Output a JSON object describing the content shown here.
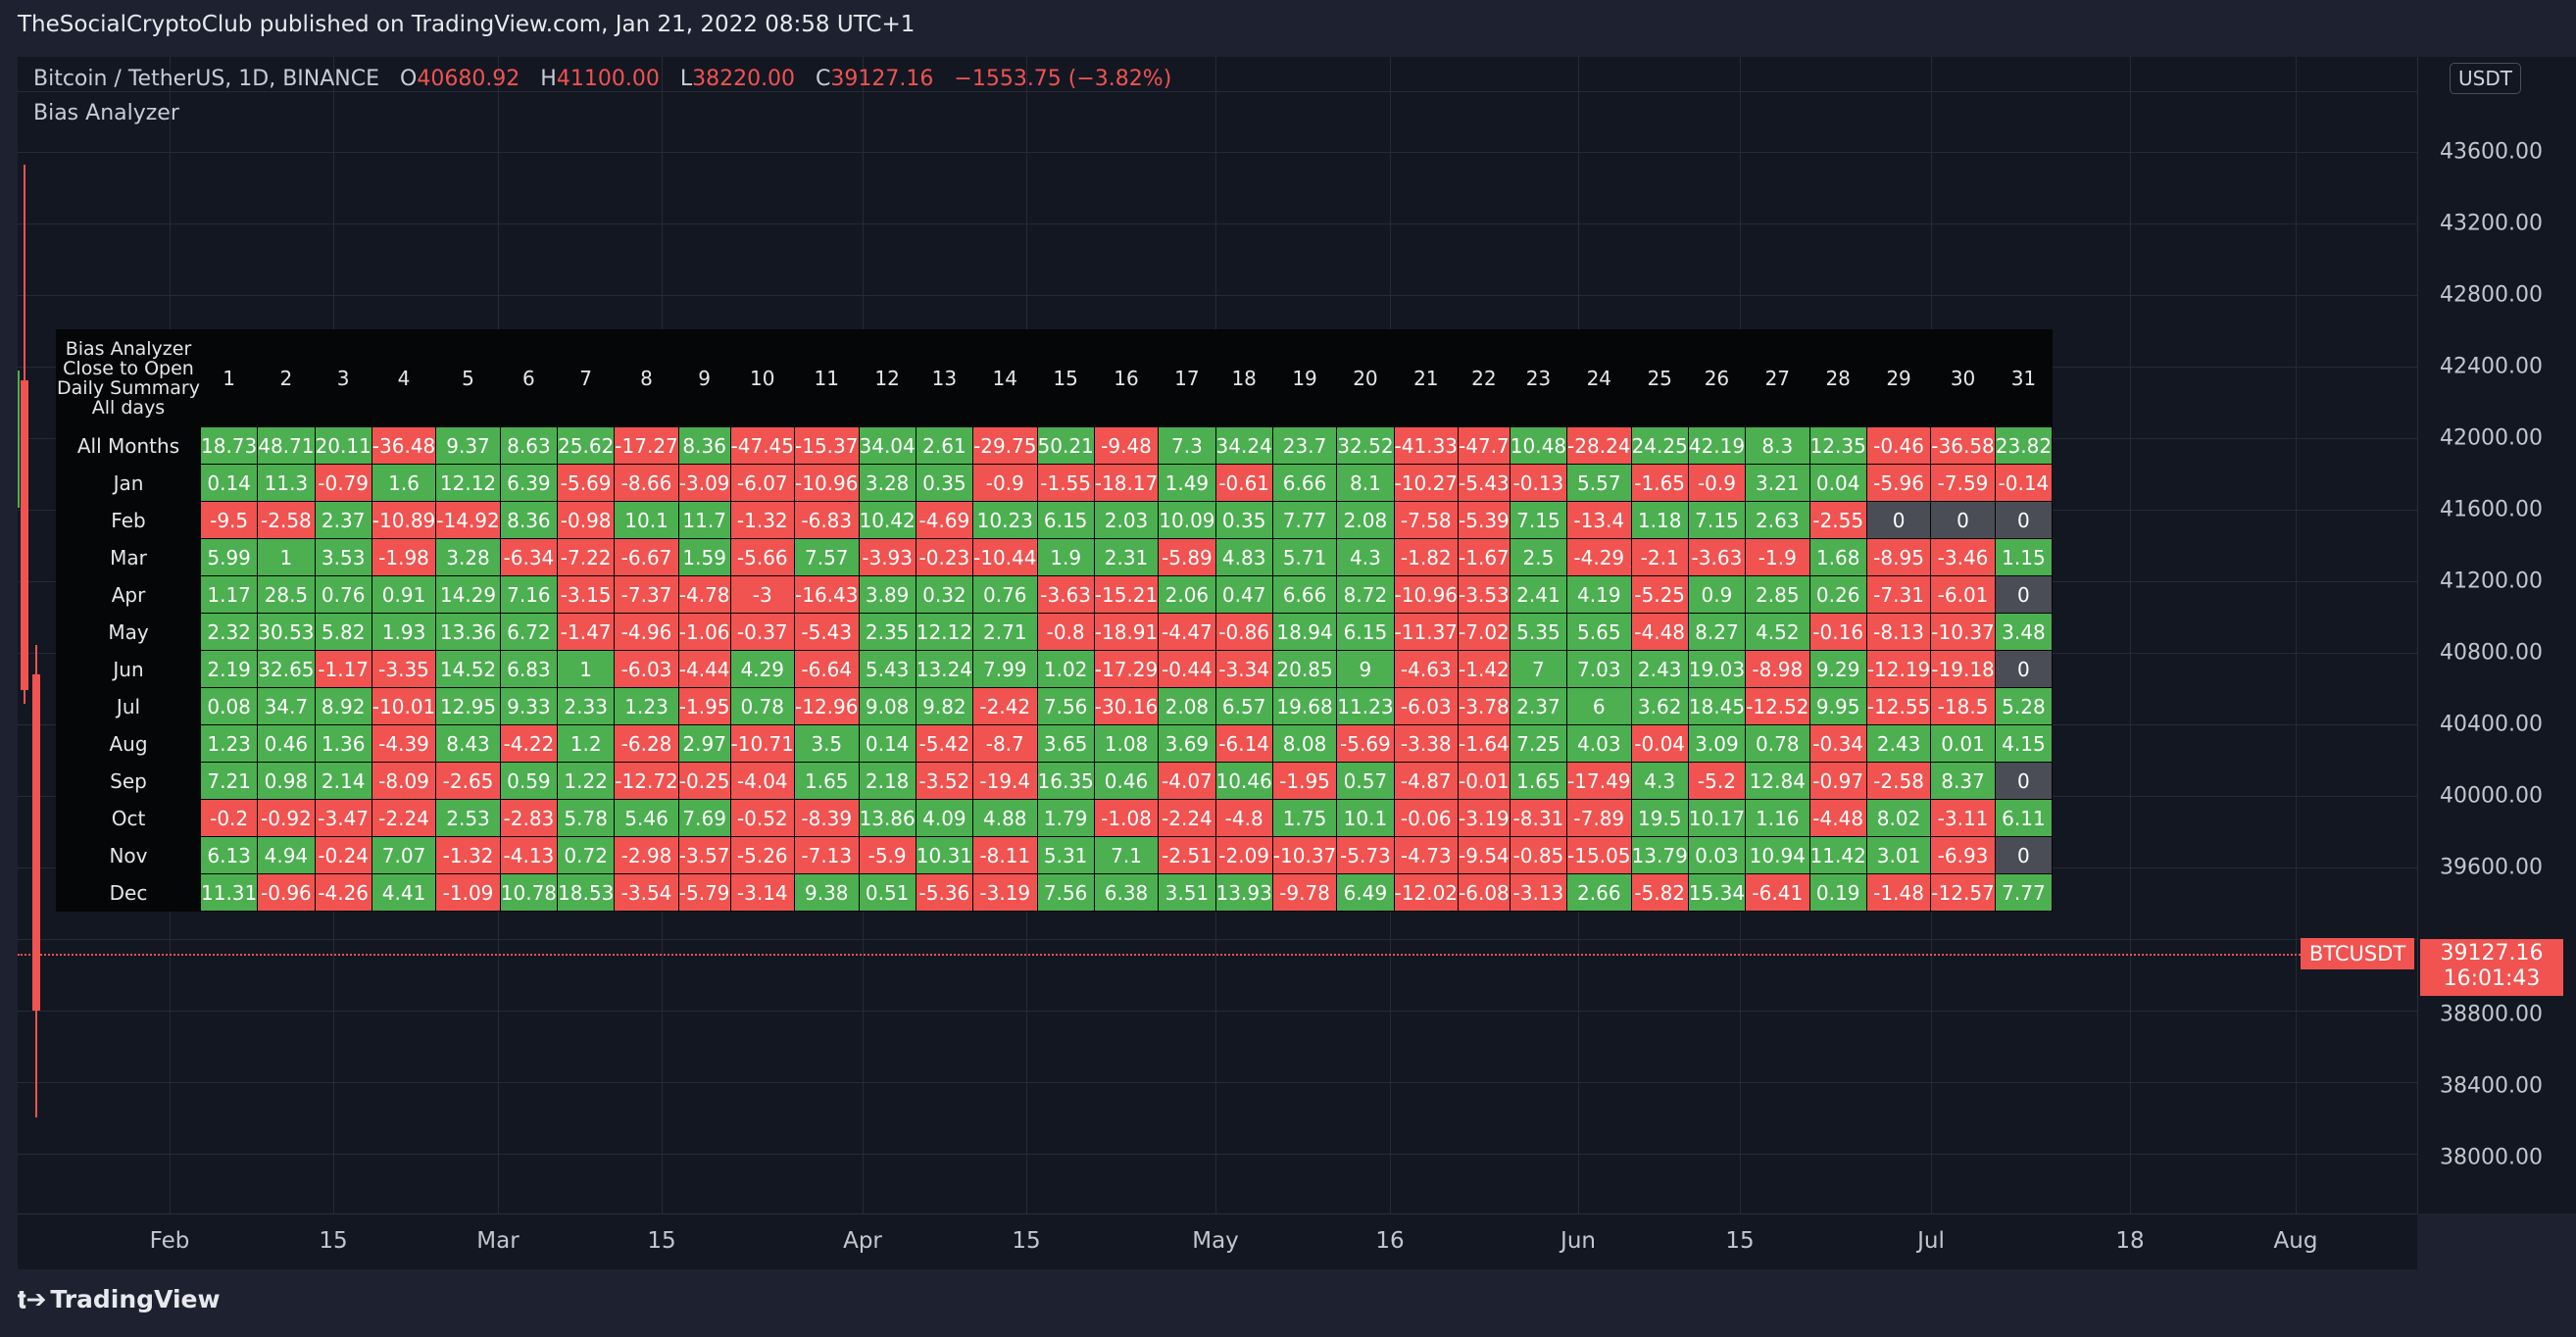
{
  "header": {
    "text": "TheSocialCryptoClub published on TradingView.com, Jan 21, 2022 08:58 UTC+1"
  },
  "legend": {
    "symbol": "Bitcoin / TetherUS, 1D, BINANCE",
    "open_label": "O",
    "open": "40680.92",
    "high_label": "H",
    "high": "41100.00",
    "low_label": "L",
    "low": "38220.00",
    "close_label": "C",
    "close": "39127.16",
    "change": "−1553.75 (−3.82%)",
    "indicator": "Bias Analyzer"
  },
  "price_axis": {
    "currency": "USDT",
    "ticks": [
      "43600.00",
      "43200.00",
      "42800.00",
      "42400.00",
      "42000.00",
      "41600.00",
      "41200.00",
      "40800.00",
      "40400.00",
      "40000.00",
      "39600.00",
      "38800.00",
      "38400.00",
      "38000.00"
    ],
    "current_price": "39127.16",
    "countdown": "16:01:43",
    "symbol_tag": "BTCUSDT"
  },
  "time_axis": {
    "labels": [
      "Feb",
      "15",
      "Mar",
      "15",
      "Apr",
      "15",
      "May",
      "16",
      "Jun",
      "15",
      "Jul",
      "18",
      "Aug"
    ]
  },
  "footer": {
    "brand": "TradingView"
  },
  "colors": {
    "positive": "#4caf50",
    "negative": "#f05350",
    "zero": "#4a4d55",
    "background": "#131722"
  },
  "table": {
    "corner": [
      "Bias Analyzer",
      "Close to Open",
      "Daily Summary",
      "All days"
    ],
    "days": [
      "1",
      "2",
      "3",
      "4",
      "5",
      "6",
      "7",
      "8",
      "9",
      "10",
      "11",
      "12",
      "13",
      "14",
      "15",
      "16",
      "17",
      "18",
      "19",
      "20",
      "21",
      "22",
      "23",
      "24",
      "25",
      "26",
      "27",
      "28",
      "29",
      "30",
      "31"
    ],
    "rows": [
      {
        "label": "All Months",
        "values": [
          "18.73",
          "48.71",
          "20.11",
          "-36.48",
          "9.37",
          "8.63",
          "25.62",
          "-17.27",
          "8.36",
          "-47.45",
          "-15.37",
          "34.04",
          "2.61",
          "-29.75",
          "50.21",
          "-9.48",
          "7.3",
          "34.24",
          "23.7",
          "32.52",
          "-41.33",
          "-47.7",
          "10.48",
          "-28.24",
          "24.25",
          "42.19",
          "8.3",
          "12.35",
          "-0.46",
          "-36.58",
          "23.82"
        ]
      },
      {
        "label": "Jan",
        "values": [
          "0.14",
          "11.3",
          "-0.79",
          "1.6",
          "12.12",
          "6.39",
          "-5.69",
          "-8.66",
          "-3.09",
          "-6.07",
          "-10.96",
          "3.28",
          "0.35",
          "-0.9",
          "-1.55",
          "-18.17",
          "1.49",
          "-0.61",
          "6.66",
          "8.1",
          "-10.27",
          "-5.43",
          "-0.13",
          "5.57",
          "-1.65",
          "-0.9",
          "3.21",
          "0.04",
          "-5.96",
          "-7.59",
          "-0.14"
        ]
      },
      {
        "label": "Feb",
        "values": [
          "-9.5",
          "-2.58",
          "2.37",
          "-10.89",
          "-14.92",
          "8.36",
          "-0.98",
          "10.1",
          "11.7",
          "-1.32",
          "-6.83",
          "10.42",
          "-4.69",
          "10.23",
          "6.15",
          "2.03",
          "10.09",
          "0.35",
          "7.77",
          "2.08",
          "-7.58",
          "-5.39",
          "7.15",
          "-13.4",
          "1.18",
          "7.15",
          "2.63",
          "-2.55",
          "0",
          "0",
          "0"
        ]
      },
      {
        "label": "Mar",
        "values": [
          "5.99",
          "1",
          "3.53",
          "-1.98",
          "3.28",
          "-6.34",
          "-7.22",
          "-6.67",
          "1.59",
          "-5.66",
          "7.57",
          "-3.93",
          "-0.23",
          "-10.44",
          "1.9",
          "2.31",
          "-5.89",
          "4.83",
          "5.71",
          "4.3",
          "-1.82",
          "-1.67",
          "2.5",
          "-4.29",
          "-2.1",
          "-3.63",
          "-1.9",
          "1.68",
          "-8.95",
          "-3.46",
          "1.15"
        ]
      },
      {
        "label": "Apr",
        "values": [
          "1.17",
          "28.5",
          "0.76",
          "0.91",
          "14.29",
          "7.16",
          "-3.15",
          "-7.37",
          "-4.78",
          "-3",
          "-16.43",
          "3.89",
          "0.32",
          "0.76",
          "-3.63",
          "-15.21",
          "2.06",
          "0.47",
          "6.66",
          "8.72",
          "-10.96",
          "-3.53",
          "2.41",
          "4.19",
          "-5.25",
          "0.9",
          "2.85",
          "0.26",
          "-7.31",
          "-6.01",
          "0"
        ]
      },
      {
        "label": "May",
        "values": [
          "2.32",
          "30.53",
          "5.82",
          "1.93",
          "13.36",
          "6.72",
          "-1.47",
          "-4.96",
          "-1.06",
          "-0.37",
          "-5.43",
          "2.35",
          "12.12",
          "2.71",
          "-0.8",
          "-18.91",
          "-4.47",
          "-0.86",
          "18.94",
          "6.15",
          "-11.37",
          "-7.02",
          "5.35",
          "5.65",
          "-4.48",
          "8.27",
          "4.52",
          "-0.16",
          "-8.13",
          "-10.37",
          "3.48"
        ]
      },
      {
        "label": "Jun",
        "values": [
          "2.19",
          "32.65",
          "-1.17",
          "-3.35",
          "14.52",
          "6.83",
          "1",
          "-6.03",
          "-4.44",
          "4.29",
          "-6.64",
          "5.43",
          "13.24",
          "7.99",
          "1.02",
          "-17.29",
          "-0.44",
          "-3.34",
          "20.85",
          "9",
          "-4.63",
          "-1.42",
          "7",
          "7.03",
          "2.43",
          "19.03",
          "-8.98",
          "9.29",
          "-12.19",
          "-19.18",
          "0"
        ]
      },
      {
        "label": "Jul",
        "values": [
          "0.08",
          "34.7",
          "8.92",
          "-10.01",
          "12.95",
          "9.33",
          "2.33",
          "1.23",
          "-1.95",
          "0.78",
          "-12.96",
          "9.08",
          "9.82",
          "-2.42",
          "7.56",
          "-30.16",
          "2.08",
          "6.57",
          "19.68",
          "11.23",
          "-6.03",
          "-3.78",
          "2.37",
          "6",
          "3.62",
          "18.45",
          "-12.52",
          "9.95",
          "-12.55",
          "-18.5",
          "5.28"
        ]
      },
      {
        "label": "Aug",
        "values": [
          "1.23",
          "0.46",
          "1.36",
          "-4.39",
          "8.43",
          "-4.22",
          "1.2",
          "-6.28",
          "2.97",
          "-10.71",
          "3.5",
          "0.14",
          "-5.42",
          "-8.7",
          "3.65",
          "1.08",
          "3.69",
          "-6.14",
          "8.08",
          "-5.69",
          "-3.38",
          "-1.64",
          "7.25",
          "4.03",
          "-0.04",
          "3.09",
          "0.78",
          "-0.34",
          "2.43",
          "0.01",
          "4.15"
        ]
      },
      {
        "label": "Sep",
        "values": [
          "7.21",
          "0.98",
          "2.14",
          "-8.09",
          "-2.65",
          "0.59",
          "1.22",
          "-12.72",
          "-0.25",
          "-4.04",
          "1.65",
          "2.18",
          "-3.52",
          "-19.4",
          "16.35",
          "0.46",
          "-4.07",
          "10.46",
          "-1.95",
          "0.57",
          "-4.87",
          "-0.01",
          "1.65",
          "-17.49",
          "4.3",
          "-5.2",
          "12.84",
          "-0.97",
          "-2.58",
          "8.37",
          "0"
        ]
      },
      {
        "label": "Oct",
        "values": [
          "-0.2",
          "-0.92",
          "-3.47",
          "-2.24",
          "2.53",
          "-2.83",
          "5.78",
          "5.46",
          "7.69",
          "-0.52",
          "-8.39",
          "13.86",
          "4.09",
          "4.88",
          "1.79",
          "-1.08",
          "-2.24",
          "-4.8",
          "1.75",
          "10.1",
          "-0.06",
          "-3.19",
          "-8.31",
          "-7.89",
          "19.5",
          "10.17",
          "1.16",
          "-4.48",
          "8.02",
          "-3.11",
          "6.11"
        ]
      },
      {
        "label": "Nov",
        "values": [
          "6.13",
          "4.94",
          "-0.24",
          "7.07",
          "-1.32",
          "-4.13",
          "0.72",
          "-2.98",
          "-3.57",
          "-5.26",
          "-7.13",
          "-5.9",
          "10.31",
          "-8.11",
          "5.31",
          "7.1",
          "-2.51",
          "-2.09",
          "-10.37",
          "-5.73",
          "-4.73",
          "-9.54",
          "-0.85",
          "-15.05",
          "13.79",
          "0.03",
          "10.94",
          "11.42",
          "3.01",
          "-6.93",
          "0"
        ]
      },
      {
        "label": "Dec",
        "values": [
          "11.31",
          "-0.96",
          "-4.26",
          "4.41",
          "-1.09",
          "10.78",
          "18.53",
          "-3.54",
          "-5.79",
          "-3.14",
          "9.38",
          "0.51",
          "-5.36",
          "-3.19",
          "7.56",
          "6.38",
          "3.51",
          "13.93",
          "-9.78",
          "6.49",
          "-12.02",
          "-6.08",
          "-3.13",
          "2.66",
          "-5.82",
          "15.34",
          "-6.41",
          "0.19",
          "-1.48",
          "-12.57",
          "7.77"
        ]
      }
    ]
  }
}
